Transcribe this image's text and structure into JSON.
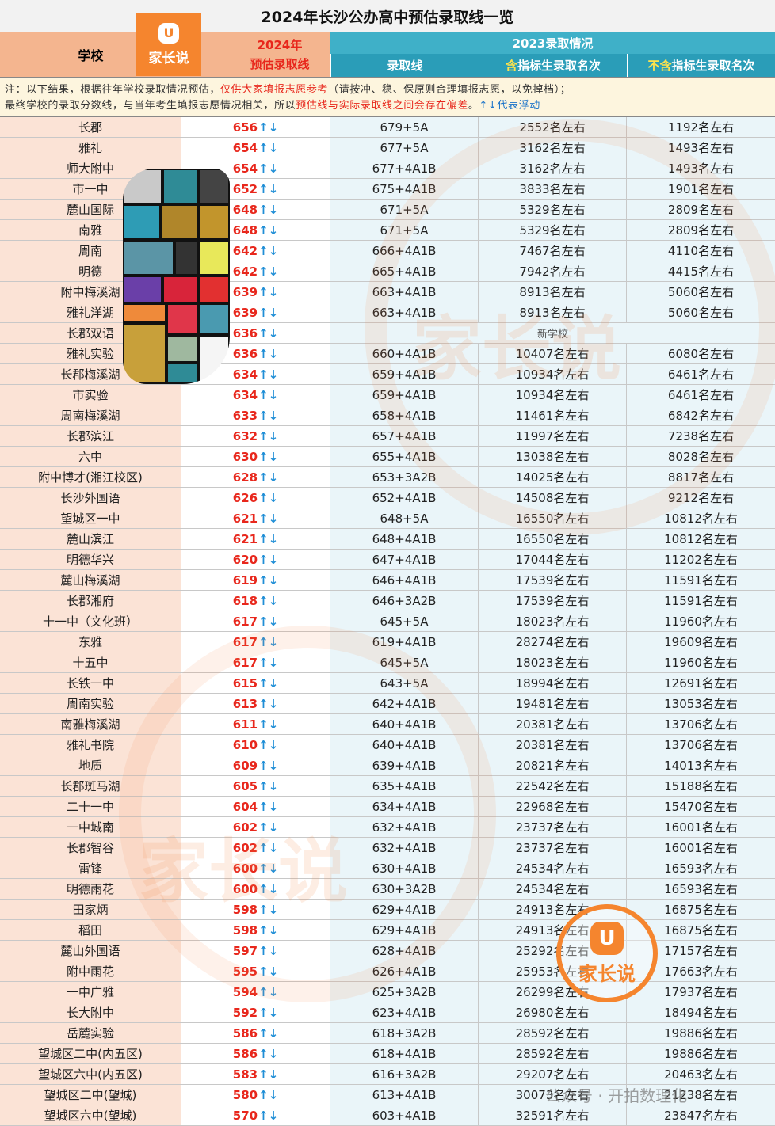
{
  "title": "2024年长沙公办高中预估录取线一览",
  "logo_text": "家长说",
  "logo_glyph": "U",
  "header": {
    "school": "学校",
    "est_line1": "2024年",
    "est_line2": "预估录取线",
    "group_2023": "2023录取情况",
    "col_line": "录取线",
    "col_incl_prefix": "含",
    "col_incl_rest": "指标生录取名次",
    "col_excl_prefix": "不含",
    "col_excl_rest": "指标生录取名次"
  },
  "note": {
    "p1": "注：以下结果，根据往年学校录取情况预估，",
    "p2": "仅供大家填报志愿参考",
    "p3": "（请按冲、稳、保原则合理填报志愿，以免掉档）；",
    "p4": "最终学校的录取分数线，与当年考生填报志愿情况相关，所以",
    "p5": "预估线与实际录取线之间会存在偏差",
    "p6": "。",
    "p7": "↑↓代表浮动"
  },
  "arrow": "↑↓",
  "rows": [
    {
      "school": "长郡",
      "est": "656",
      "line": "679+5A",
      "incl": "2552名左右",
      "excl": "1192名左右"
    },
    {
      "school": "雅礼",
      "est": "654",
      "line": "677+5A",
      "incl": "3162名左右",
      "excl": "1493名左右"
    },
    {
      "school": "师大附中",
      "est": "654",
      "line": "677+4A1B",
      "incl": "3162名左右",
      "excl": "1493名左右"
    },
    {
      "school": "市一中",
      "est": "652",
      "line": "675+4A1B",
      "incl": "3833名左右",
      "excl": "1901名左右"
    },
    {
      "school": "麓山国际",
      "est": "648",
      "line": "671+5A",
      "incl": "5329名左右",
      "excl": "2809名左右"
    },
    {
      "school": "南雅",
      "est": "648",
      "line": "671+5A",
      "incl": "5329名左右",
      "excl": "2809名左右"
    },
    {
      "school": "周南",
      "est": "642",
      "line": "666+4A1B",
      "incl": "7467名左右",
      "excl": "4110名左右"
    },
    {
      "school": "明德",
      "est": "642",
      "line": "665+4A1B",
      "incl": "7942名左右",
      "excl": "4415名左右"
    },
    {
      "school": "附中梅溪湖",
      "est": "639",
      "line": "663+4A1B",
      "incl": "8913名左右",
      "excl": "5060名左右"
    },
    {
      "school": "雅礼洋湖",
      "est": "639",
      "line": "663+4A1B",
      "incl": "8913名左右",
      "excl": "5060名左右"
    },
    {
      "school": "长郡双语",
      "est": "636",
      "merged": "新学校"
    },
    {
      "school": "雅礼实验",
      "est": "636",
      "line": "660+4A1B",
      "incl": "10407名左右",
      "excl": "6080名左右"
    },
    {
      "school": "长郡梅溪湖",
      "est": "634",
      "line": "659+4A1B",
      "incl": "10934名左右",
      "excl": "6461名左右"
    },
    {
      "school": "市实验",
      "est": "634",
      "line": "659+4A1B",
      "incl": "10934名左右",
      "excl": "6461名左右"
    },
    {
      "school": "周南梅溪湖",
      "est": "633",
      "line": "658+4A1B",
      "incl": "11461名左右",
      "excl": "6842名左右"
    },
    {
      "school": "长郡滨江",
      "est": "632",
      "line": "657+4A1B",
      "incl": "11997名左右",
      "excl": "7238名左右"
    },
    {
      "school": "六中",
      "est": "630",
      "line": "655+4A1B",
      "incl": "13038名左右",
      "excl": "8028名左右"
    },
    {
      "school": "附中博才(湘江校区)",
      "est": "628",
      "line": "653+3A2B",
      "incl": "14025名左右",
      "excl": "8817名左右"
    },
    {
      "school": "长沙外国语",
      "est": "626",
      "line": "652+4A1B",
      "incl": "14508名左右",
      "excl": "9212名左右"
    },
    {
      "school": "望城区一中",
      "est": "621",
      "line": "648+5A",
      "incl": "16550名左右",
      "excl": "10812名左右"
    },
    {
      "school": "麓山滨江",
      "est": "621",
      "line": "648+4A1B",
      "incl": "16550名左右",
      "excl": "10812名左右"
    },
    {
      "school": "明德华兴",
      "est": "620",
      "line": "647+4A1B",
      "incl": "17044名左右",
      "excl": "11202名左右"
    },
    {
      "school": "麓山梅溪湖",
      "est": "619",
      "line": "646+4A1B",
      "incl": "17539名左右",
      "excl": "11591名左右"
    },
    {
      "school": "长郡湘府",
      "est": "618",
      "line": "646+3A2B",
      "incl": "17539名左右",
      "excl": "11591名左右"
    },
    {
      "school": "十一中（文化班）",
      "est": "617",
      "line": "645+5A",
      "incl": "18023名左右",
      "excl": "11960名左右"
    },
    {
      "school": "东雅",
      "est": "617",
      "line": "619+4A1B",
      "incl": "28274名左右",
      "excl": "19609名左右"
    },
    {
      "school": "十五中",
      "est": "617",
      "line": "645+5A",
      "incl": "18023名左右",
      "excl": "11960名左右"
    },
    {
      "school": "长铁一中",
      "est": "615",
      "line": "643+5A",
      "incl": "18994名左右",
      "excl": "12691名左右"
    },
    {
      "school": "周南实验",
      "est": "613",
      "line": "642+4A1B",
      "incl": "19481名左右",
      "excl": "13053名左右"
    },
    {
      "school": "南雅梅溪湖",
      "est": "611",
      "line": "640+4A1B",
      "incl": "20381名左右",
      "excl": "13706名左右"
    },
    {
      "school": "雅礼书院",
      "est": "610",
      "line": "640+4A1B",
      "incl": "20381名左右",
      "excl": "13706名左右"
    },
    {
      "school": "地质",
      "est": "609",
      "line": "639+4A1B",
      "incl": "20821名左右",
      "excl": "14013名左右"
    },
    {
      "school": "长郡斑马湖",
      "est": "605",
      "line": "635+4A1B",
      "incl": "22542名左右",
      "excl": "15188名左右"
    },
    {
      "school": "二十一中",
      "est": "604",
      "line": "634+4A1B",
      "incl": "22968名左右",
      "excl": "15470名左右"
    },
    {
      "school": "一中城南",
      "est": "602",
      "line": "632+4A1B",
      "incl": "23737名左右",
      "excl": "16001名左右"
    },
    {
      "school": "长郡智谷",
      "est": "602",
      "line": "632+4A1B",
      "incl": "23737名左右",
      "excl": "16001名左右"
    },
    {
      "school": "雷锋",
      "est": "600",
      "line": "630+4A1B",
      "incl": "24534名左右",
      "excl": "16593名左右"
    },
    {
      "school": "明德雨花",
      "est": "600",
      "line": "630+3A2B",
      "incl": "24534名左右",
      "excl": "16593名左右"
    },
    {
      "school": "田家炳",
      "est": "598",
      "line": "629+4A1B",
      "incl": "24913名左右",
      "excl": "16875名左右"
    },
    {
      "school": "稻田",
      "est": "598",
      "line": "629+4A1B",
      "incl": "24913名左右",
      "excl": "16875名左右"
    },
    {
      "school": "麓山外国语",
      "est": "597",
      "line": "628+4A1B",
      "incl": "25292名左右",
      "excl": "17157名左右"
    },
    {
      "school": "附中雨花",
      "est": "595",
      "line": "626+4A1B",
      "incl": "25953名左右",
      "excl": "17663名左右"
    },
    {
      "school": "一中广雅",
      "est": "594",
      "line": "625+3A2B",
      "incl": "26299名左右",
      "excl": "17937名左右"
    },
    {
      "school": "长大附中",
      "est": "592",
      "line": "623+4A1B",
      "incl": "26980名左右",
      "excl": "18494名左右"
    },
    {
      "school": "岳麓实验",
      "est": "586",
      "line": "618+3A2B",
      "incl": "28592名左右",
      "excl": "19886名左右"
    },
    {
      "school": "望城区二中(内五区)",
      "est": "586",
      "line": "618+4A1B",
      "incl": "28592名左右",
      "excl": "19886名左右"
    },
    {
      "school": "望城区六中(内五区)",
      "est": "583",
      "line": "616+3A2B",
      "incl": "29207名左右",
      "excl": "20463名左右"
    },
    {
      "school": "望城区二中(望城)",
      "est": "580",
      "line": "613+4A1B",
      "incl": "30073名左右",
      "excl": "21238名左右"
    },
    {
      "school": "望城区六中(望城)",
      "est": "570",
      "line": "603+4A1B",
      "incl": "32591名左右",
      "excl": "23847名左右"
    }
  ],
  "watermark": {
    "text": "家长说",
    "badge_text": "家长说",
    "account": "公众号 · 开拍数理化"
  },
  "colors": {
    "header_orange": "#f4b58f",
    "header_teal": "#3fb0c8",
    "accent_red": "#e8271c",
    "arrow_blue": "#1f8ed6",
    "logo_orange": "#f5852e"
  }
}
